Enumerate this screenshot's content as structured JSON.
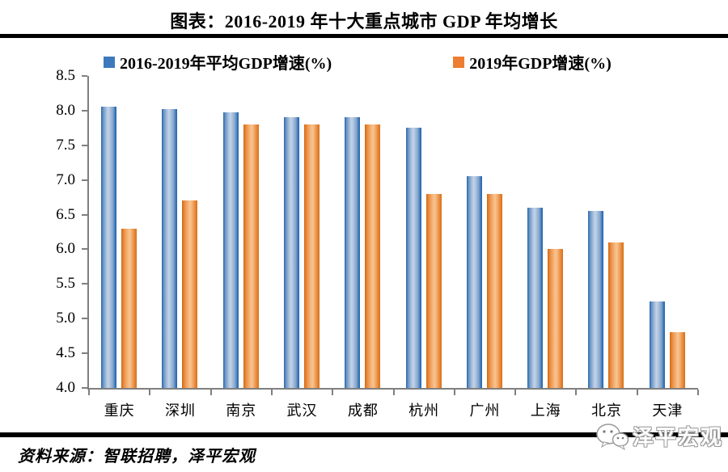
{
  "page": {
    "title": "图表：2016-2019 年十大重点城市 GDP 年均增长",
    "source_label": "资料来源：智联招聘，泽平宏观",
    "watermark_label": "泽平宏观"
  },
  "legend": {
    "items": [
      {
        "label": "2016-2019年平均GDP增速(%)",
        "color": "#3d79bc"
      },
      {
        "label": "2019年GDP增速(%)",
        "color": "#ed7d31"
      }
    ]
  },
  "chart_data": {
    "type": "bar",
    "title": "图表：2016-2019 年十大重点城市 GDP 年均增长",
    "categories": [
      "重庆",
      "深圳",
      "南京",
      "武汉",
      "成都",
      "杭州",
      "广州",
      "上海",
      "北京",
      "天津"
    ],
    "series": [
      {
        "name": "2016-2019年平均GDP增速(%)",
        "color": "#3d79bc",
        "values": [
          8.06,
          8.02,
          7.98,
          7.9,
          7.9,
          7.75,
          7.05,
          6.6,
          6.55,
          5.25
        ]
      },
      {
        "name": "2019年GDP增速(%)",
        "color": "#ed7d31",
        "values": [
          6.3,
          6.7,
          7.8,
          7.8,
          7.8,
          6.8,
          6.8,
          6.0,
          6.1,
          4.8
        ]
      }
    ],
    "xlabel": "",
    "ylabel": "",
    "ylim": [
      4.0,
      8.5
    ],
    "y_ticks": [
      "8.5",
      "8.0",
      "7.5",
      "7.0",
      "6.5",
      "6.0",
      "5.5",
      "5.0",
      "4.5",
      "4.0"
    ],
    "grid": false,
    "legend_position": "top"
  }
}
